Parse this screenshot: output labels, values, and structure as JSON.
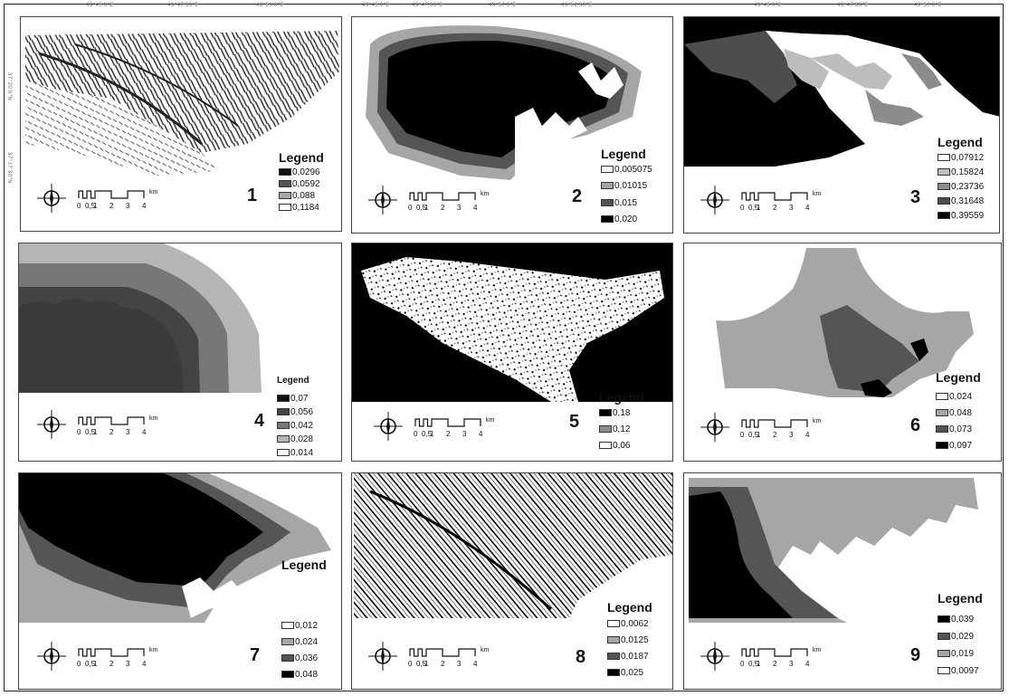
{
  "coordinate_ticks": {
    "top": [
      "49°45'0\"E",
      "49°47'30\"E",
      "49°50'0\"E",
      "49°45'0\"E",
      "49°47'30\"E",
      "49°50'0\"E",
      "49°52'30\"E",
      "49°45'0\"E",
      "49°47'30\"E",
      "49°50'0\"E"
    ],
    "left": [
      "37°20'0\"N",
      "37°17'30\"N"
    ]
  },
  "scale_bar": {
    "labels": [
      "0",
      "0,5",
      "1",
      "2",
      "3",
      "4"
    ],
    "unit": "km"
  },
  "panels": [
    {
      "num": "1",
      "legend_title": "Legend",
      "items": [
        {
          "label": "0,0296",
          "color": "#111111"
        },
        {
          "label": "0,0592",
          "color": "#555555"
        },
        {
          "label": "0,088",
          "color": "#a6a6a6"
        },
        {
          "label": "0,1184",
          "color": "#ffffff"
        }
      ]
    },
    {
      "num": "2",
      "legend_title": "Legend",
      "items": [
        {
          "label": "0,005075",
          "color": "#ffffff"
        },
        {
          "label": "0,01015",
          "color": "#a6a6a6"
        },
        {
          "label": "0,015",
          "color": "#555555"
        },
        {
          "label": "0,020",
          "color": "#000000"
        }
      ]
    },
    {
      "num": "3",
      "legend_title": "Legend",
      "items": [
        {
          "label": "0,07912",
          "color": "#ffffff"
        },
        {
          "label": "0,15824",
          "color": "#bdbdbd"
        },
        {
          "label": "0,23736",
          "color": "#8c8c8c"
        },
        {
          "label": "0,31648",
          "color": "#4d4d4d"
        },
        {
          "label": "0,39559",
          "color": "#000000"
        }
      ]
    },
    {
      "num": "4",
      "legend_title": "Legend",
      "items": [
        {
          "label": "0,07",
          "color": "#111111"
        },
        {
          "label": "0,056",
          "color": "#444444"
        },
        {
          "label": "0,042",
          "color": "#777777"
        },
        {
          "label": "0,028",
          "color": "#b5b5b5"
        },
        {
          "label": "0,014",
          "color": "#ffffff"
        }
      ]
    },
    {
      "num": "5",
      "legend_title": "Legend",
      "items": [
        {
          "label": "0,18",
          "color": "#000000"
        },
        {
          "label": "0,12",
          "color": "#8c8c8c"
        },
        {
          "label": "0,06",
          "color": "#ffffff"
        }
      ]
    },
    {
      "num": "6",
      "legend_title": "Legend",
      "items": [
        {
          "label": "0,024",
          "color": "#ffffff"
        },
        {
          "label": "0,048",
          "color": "#a6a6a6"
        },
        {
          "label": "0,073",
          "color": "#555555"
        },
        {
          "label": "0,097",
          "color": "#000000"
        }
      ]
    },
    {
      "num": "7",
      "legend_title": "Legend",
      "items": [
        {
          "label": "0,012",
          "color": "#ffffff"
        },
        {
          "label": "0,024",
          "color": "#a6a6a6"
        },
        {
          "label": "0,036",
          "color": "#555555"
        },
        {
          "label": "0,048",
          "color": "#000000"
        }
      ]
    },
    {
      "num": "8",
      "legend_title": "Legend",
      "items": [
        {
          "label": "0,0062",
          "color": "#ffffff"
        },
        {
          "label": "0,0125",
          "color": "#a6a6a6"
        },
        {
          "label": "0,0187",
          "color": "#555555"
        },
        {
          "label": "0,025",
          "color": "#000000"
        }
      ]
    },
    {
      "num": "9",
      "legend_title": "Legend",
      "items": [
        {
          "label": "0,039",
          "color": "#000000"
        },
        {
          "label": "0,029",
          "color": "#555555"
        },
        {
          "label": "0,019",
          "color": "#a6a6a6"
        },
        {
          "label": "0,0097",
          "color": "#ffffff"
        }
      ]
    }
  ]
}
